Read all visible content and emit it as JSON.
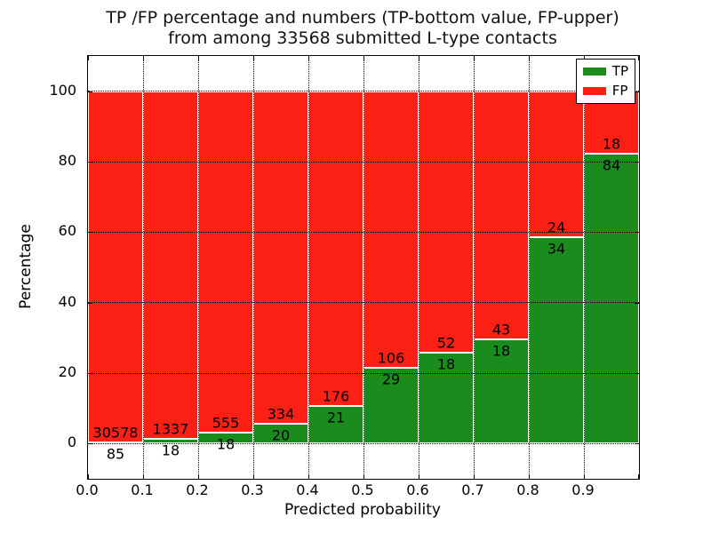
{
  "chart_data": {
    "type": "bar",
    "subtype": "stacked_percentage",
    "title_line1": "TP /FP percentage and numbers (TP-bottom value, FP-upper)",
    "title_line2": "from among 33568 submitted L-type contacts",
    "total_contacts": 33568,
    "xlabel": "Predicted probability",
    "ylabel": "Percentage",
    "xlim": [
      0.0,
      1.0
    ],
    "ylim": [
      -10,
      110
    ],
    "grid": "dotted",
    "bin_width": 0.1,
    "x_tick_labels": [
      "0.0",
      "0.1",
      "0.2",
      "0.3",
      "0.4",
      "0.5",
      "0.6",
      "0.7",
      "0.8",
      "0.9"
    ],
    "y_tick_values": [
      0,
      20,
      40,
      60,
      80,
      100
    ],
    "bins": [
      {
        "x_start": 0.0,
        "tp": 85,
        "fp": 30578
      },
      {
        "x_start": 0.1,
        "tp": 18,
        "fp": 1337
      },
      {
        "x_start": 0.2,
        "tp": 18,
        "fp": 555
      },
      {
        "x_start": 0.3,
        "tp": 20,
        "fp": 334
      },
      {
        "x_start": 0.4,
        "tp": 21,
        "fp": 176
      },
      {
        "x_start": 0.5,
        "tp": 29,
        "fp": 106
      },
      {
        "x_start": 0.6,
        "tp": 18,
        "fp": 52
      },
      {
        "x_start": 0.7,
        "tp": 18,
        "fp": 43
      },
      {
        "x_start": 0.8,
        "tp": 34,
        "fp": 24
      },
      {
        "x_start": 0.9,
        "tp": 84,
        "fp": 18
      }
    ],
    "tp_percent": [
      0.28,
      1.33,
      3.14,
      5.65,
      10.66,
      21.48,
      25.71,
      29.51,
      58.62,
      82.35
    ],
    "series": [
      {
        "name": "TP",
        "color": "#1a8c1e"
      },
      {
        "name": "FP",
        "color": "#fd2015"
      }
    ],
    "legend": {
      "position": "upper right",
      "entries": [
        {
          "label": "TP",
          "color": "#1a8c1e"
        },
        {
          "label": "FP",
          "color": "#fd2015"
        }
      ]
    }
  }
}
